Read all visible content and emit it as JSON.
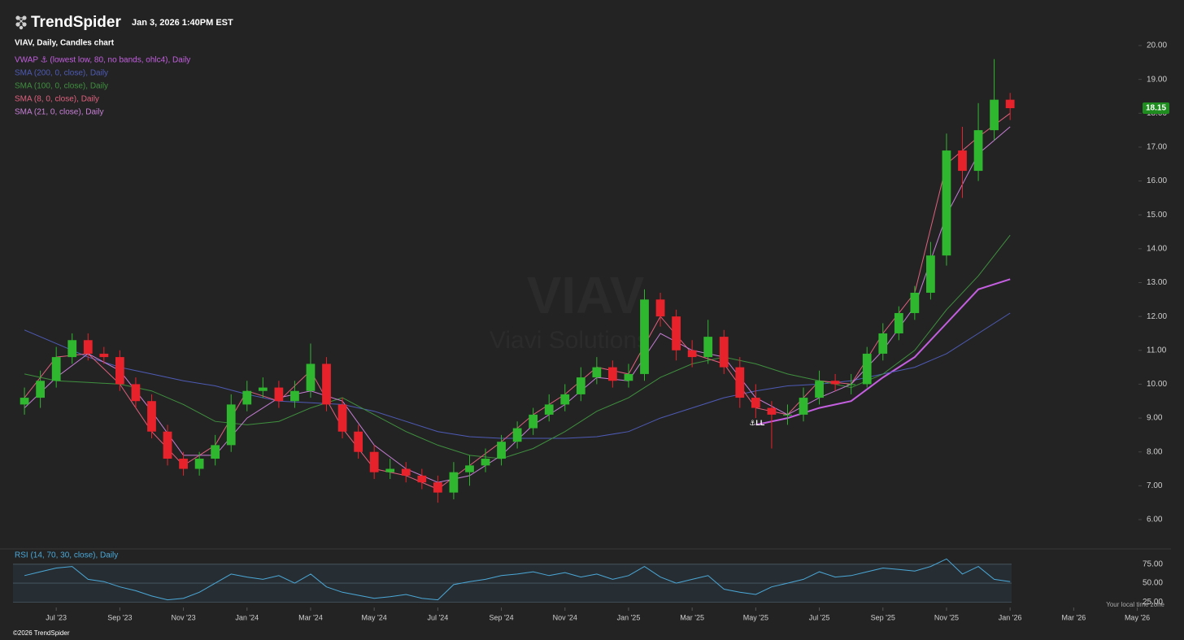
{
  "header": {
    "brand": "TrendSpider",
    "timestamp": "Jan 3, 2026 1:40PM EST",
    "watermark_symbol": "VIAV",
    "watermark_name": "Viavi Solutions",
    "timezone_note": "Your local time zone",
    "copyright": "©2026 TrendSpider"
  },
  "chart_data": [
    {
      "type": "candlestick",
      "title": "VIAV, Daily, Candles chart",
      "x": [
        5,
        5.5,
        6,
        6.5,
        7,
        7.5,
        8,
        8.5,
        9,
        9.5,
        10,
        10.5,
        11,
        11.5,
        12,
        12.5,
        13,
        13.5,
        14,
        14.5,
        15,
        15.5,
        16,
        16.5,
        17,
        17.5,
        18,
        18.5,
        19,
        19.5,
        20,
        20.5,
        21,
        21.5,
        22,
        22.5,
        23,
        23.5,
        24,
        24.5,
        25,
        25.5,
        26,
        26.5,
        27,
        27.5,
        28,
        28.5,
        29,
        29.5,
        30,
        30.5,
        31,
        31.5,
        32,
        32.5,
        33,
        33.5,
        34,
        34.5,
        35,
        35.5,
        36
      ],
      "open": [
        9.4,
        9.6,
        10.1,
        10.8,
        11.3,
        10.9,
        10.8,
        10.0,
        9.5,
        8.6,
        7.8,
        7.5,
        7.8,
        8.2,
        9.4,
        9.8,
        9.9,
        9.5,
        9.8,
        10.6,
        9.4,
        8.6,
        8.0,
        7.4,
        7.5,
        7.3,
        7.1,
        6.8,
        7.4,
        7.6,
        7.8,
        8.3,
        8.7,
        9.1,
        9.4,
        9.7,
        10.2,
        10.5,
        10.1,
        10.3,
        12.5,
        12.0,
        11.0,
        10.8,
        11.4,
        10.5,
        9.6,
        9.3,
        9.1,
        9.1,
        9.6,
        10.1,
        10.0,
        10.0,
        10.9,
        11.5,
        12.1,
        12.7,
        13.8,
        16.9,
        16.3,
        17.5,
        18.4
      ],
      "high": [
        9.9,
        10.4,
        11.1,
        11.5,
        11.5,
        11.1,
        11.0,
        10.2,
        9.7,
        8.8,
        8.0,
        8.0,
        8.5,
        9.7,
        10.1,
        10.2,
        10.1,
        10.1,
        11.2,
        10.8,
        9.6,
        8.8,
        8.2,
        7.8,
        7.7,
        7.5,
        7.3,
        7.7,
        7.9,
        8.1,
        8.5,
        8.9,
        9.3,
        9.7,
        10.0,
        10.5,
        10.8,
        10.7,
        10.6,
        12.8,
        12.7,
        12.2,
        11.3,
        11.9,
        11.6,
        10.8,
        10.0,
        9.5,
        9.4,
        9.9,
        10.4,
        10.3,
        10.3,
        11.1,
        11.8,
        12.3,
        12.9,
        14.2,
        17.4,
        17.6,
        18.3,
        19.6,
        18.6
      ],
      "low": [
        9.1,
        9.3,
        9.9,
        10.6,
        10.7,
        10.6,
        9.8,
        9.3,
        8.4,
        7.6,
        7.3,
        7.3,
        7.6,
        8.0,
        9.2,
        9.6,
        9.3,
        9.3,
        9.6,
        9.2,
        8.4,
        7.8,
        7.2,
        7.2,
        7.1,
        6.9,
        6.5,
        6.6,
        7.0,
        7.4,
        7.6,
        8.1,
        8.5,
        8.9,
        9.2,
        9.5,
        10.0,
        9.9,
        9.9,
        10.1,
        11.7,
        10.7,
        10.5,
        10.6,
        10.3,
        9.3,
        9.0,
        8.1,
        8.8,
        8.9,
        9.4,
        9.8,
        9.7,
        9.9,
        10.7,
        11.3,
        11.9,
        12.5,
        13.5,
        15.5,
        16.0,
        17.2,
        17.8
      ],
      "close": [
        9.6,
        10.1,
        10.8,
        11.3,
        10.9,
        10.8,
        10.0,
        9.5,
        8.6,
        7.8,
        7.5,
        7.8,
        8.2,
        9.4,
        9.8,
        9.9,
        9.5,
        9.8,
        10.6,
        9.4,
        8.6,
        8.0,
        7.4,
        7.5,
        7.3,
        7.1,
        6.8,
        7.4,
        7.6,
        7.8,
        8.3,
        8.7,
        9.1,
        9.4,
        9.7,
        10.2,
        10.5,
        10.1,
        10.3,
        12.5,
        12.0,
        11.0,
        10.8,
        11.4,
        10.5,
        9.6,
        9.3,
        9.1,
        9.1,
        9.6,
        10.1,
        10.0,
        10.0,
        10.9,
        11.5,
        12.1,
        12.7,
        13.8,
        16.9,
        16.3,
        17.5,
        18.4,
        18.15
      ],
      "up_color": "#2fb82f",
      "down_color": "#e8222a",
      "last_price": 18.15,
      "last_price_color": "#1e8c1e",
      "annotation": "⚓LL",
      "series": [
        {
          "name": "VWAP ⚓ (lowest low, 80, no bands, ohlc4), Daily",
          "color": "#c45fe0",
          "width": 2,
          "x": [
            5,
            6,
            7,
            8,
            9,
            10,
            11,
            12,
            13,
            14,
            15,
            16,
            17,
            18,
            19,
            20,
            21,
            22,
            23,
            24,
            25,
            26,
            27,
            28,
            29,
            30,
            31,
            32,
            33,
            34,
            35,
            36
          ],
          "values": [
            null,
            null,
            null,
            null,
            null,
            null,
            null,
            null,
            null,
            null,
            null,
            null,
            null,
            null,
            null,
            null,
            null,
            null,
            null,
            null,
            null,
            null,
            null,
            8.8,
            9.0,
            9.3,
            9.5,
            10.2,
            10.8,
            11.8,
            12.8,
            13.1
          ]
        },
        {
          "name": "SMA (200, 0, close), Daily",
          "color": "#4e5bb5",
          "width": 1,
          "x": [
            5,
            6,
            7,
            8,
            9,
            10,
            11,
            12,
            13,
            14,
            15,
            16,
            17,
            18,
            19,
            20,
            21,
            22,
            23,
            24,
            25,
            26,
            27,
            28,
            29,
            30,
            31,
            32,
            33,
            34,
            35,
            36
          ],
          "values": [
            11.6,
            11.2,
            10.8,
            10.5,
            10.3,
            10.1,
            9.95,
            9.7,
            9.5,
            9.45,
            9.4,
            9.2,
            8.9,
            8.6,
            8.45,
            8.4,
            8.4,
            8.4,
            8.45,
            8.6,
            9.0,
            9.3,
            9.6,
            9.8,
            9.95,
            10.0,
            10.1,
            10.3,
            10.5,
            10.9,
            11.5,
            12.1
          ]
        },
        {
          "name": "SMA (100, 0, close), Daily",
          "color": "#3f8f3f",
          "width": 1,
          "x": [
            5,
            6,
            7,
            8,
            9,
            10,
            11,
            12,
            13,
            14,
            15,
            16,
            17,
            18,
            19,
            20,
            21,
            22,
            23,
            24,
            25,
            26,
            27,
            28,
            29,
            30,
            31,
            32,
            33,
            34,
            35,
            36
          ],
          "values": [
            10.3,
            10.1,
            10.05,
            10.0,
            9.8,
            9.4,
            8.9,
            8.8,
            8.9,
            9.3,
            9.6,
            9.1,
            8.6,
            8.2,
            7.9,
            7.8,
            8.1,
            8.6,
            9.2,
            9.6,
            10.2,
            10.6,
            10.8,
            10.6,
            10.3,
            10.1,
            9.9,
            10.3,
            11.0,
            12.2,
            13.2,
            14.4
          ]
        },
        {
          "name": "SMA (8, 0, close), Daily",
          "color": "#e0607e",
          "width": 1,
          "x": [
            5,
            6,
            7,
            8,
            9,
            10,
            11,
            12,
            13,
            14,
            15,
            16,
            17,
            18,
            19,
            20,
            21,
            22,
            23,
            24,
            25,
            26,
            27,
            28,
            29,
            30,
            31,
            32,
            33,
            34,
            35,
            36
          ],
          "values": [
            9.6,
            10.8,
            10.9,
            10.0,
            8.6,
            7.6,
            8.2,
            9.8,
            9.5,
            10.4,
            8.7,
            7.5,
            7.3,
            6.9,
            7.6,
            8.3,
            9.1,
            9.7,
            10.5,
            10.3,
            12.0,
            10.9,
            10.6,
            9.3,
            9.1,
            10.1,
            10.0,
            11.5,
            12.7,
            16.5,
            17.3,
            18.0
          ]
        },
        {
          "name": "SMA (21, 0, close), Daily",
          "color": "#c77fd6",
          "width": 1,
          "x": [
            5,
            6,
            7,
            8,
            9,
            10,
            11,
            12,
            13,
            14,
            15,
            16,
            17,
            18,
            19,
            20,
            21,
            22,
            23,
            24,
            25,
            26,
            27,
            28,
            29,
            30,
            31,
            32,
            33,
            34,
            35,
            36
          ],
          "values": [
            9.3,
            10.2,
            10.9,
            10.4,
            9.2,
            7.9,
            7.9,
            9.0,
            9.6,
            9.8,
            9.5,
            8.2,
            7.5,
            7.1,
            7.3,
            7.9,
            8.8,
            9.4,
            10.2,
            10.1,
            11.5,
            11.0,
            10.8,
            9.6,
            9.1,
            9.6,
            10.0,
            11.0,
            12.3,
            15.0,
            16.8,
            17.6
          ]
        }
      ],
      "xlim": [
        4.64,
        41.06
      ],
      "xticks": [
        {
          "value": 6,
          "label": "Jul '23"
        },
        {
          "value": 8,
          "label": "Sep '23"
        },
        {
          "value": 10,
          "label": "Nov '23"
        },
        {
          "value": 12,
          "label": "Jan '24"
        },
        {
          "value": 14,
          "label": "Mar '24"
        },
        {
          "value": 16,
          "label": "May '24"
        },
        {
          "value": 18,
          "label": "Jul '24"
        },
        {
          "value": 20,
          "label": "Sep '24"
        },
        {
          "value": 22,
          "label": "Nov '24"
        },
        {
          "value": 24,
          "label": "Jan '25"
        },
        {
          "value": 26,
          "label": "Mar '25"
        },
        {
          "value": 28,
          "label": "May '25"
        },
        {
          "value": 30,
          "label": "Jul '25"
        },
        {
          "value": 32,
          "label": "Sep '25"
        },
        {
          "value": 34,
          "label": "Nov '25"
        },
        {
          "value": 36,
          "label": "Jan '26"
        },
        {
          "value": 38,
          "label": "Mar '26"
        },
        {
          "value": 40,
          "label": "May '26"
        }
      ],
      "ylim": [
        5.2,
        20.3
      ],
      "yticks": [
        {
          "value": 6,
          "label": "6.00"
        },
        {
          "value": 7,
          "label": "7.00"
        },
        {
          "value": 8,
          "label": "8.00"
        },
        {
          "value": 9,
          "label": "9.00"
        },
        {
          "value": 10,
          "label": "10.00"
        },
        {
          "value": 11,
          "label": "11.00"
        },
        {
          "value": 12,
          "label": "12.00"
        },
        {
          "value": 13,
          "label": "13.00"
        },
        {
          "value": 14,
          "label": "14.00"
        },
        {
          "value": 15,
          "label": "15.00"
        },
        {
          "value": 16,
          "label": "16.00"
        },
        {
          "value": 17,
          "label": "17.00"
        },
        {
          "value": 18,
          "label": "18.00"
        },
        {
          "value": 19,
          "label": "19.00"
        },
        {
          "value": 20,
          "label": "20.00"
        }
      ]
    },
    {
      "type": "line",
      "series": [
        {
          "name": "RSI (14, 70, 30, close), Daily",
          "color": "#4aa8d8",
          "values": [
            60,
            65,
            70,
            72,
            55,
            52,
            45,
            40,
            33,
            28,
            30,
            38,
            50,
            62,
            58,
            55,
            60,
            50,
            62,
            45,
            38,
            34,
            30,
            32,
            35,
            30,
            28,
            48,
            52,
            55,
            60,
            62,
            65,
            60,
            64,
            58,
            62,
            55,
            60,
            72,
            58,
            50,
            55,
            60,
            42,
            38,
            35,
            45,
            50,
            55,
            65,
            58,
            60,
            65,
            70,
            68,
            66,
            72,
            82,
            62,
            72,
            55,
            52
          ]
        }
      ],
      "ylim": [
        20,
        92
      ],
      "yticks": [
        {
          "value": 25,
          "label": "25.00"
        },
        {
          "value": 50,
          "label": "50.00"
        },
        {
          "value": 75,
          "label": "75.00"
        }
      ]
    }
  ]
}
